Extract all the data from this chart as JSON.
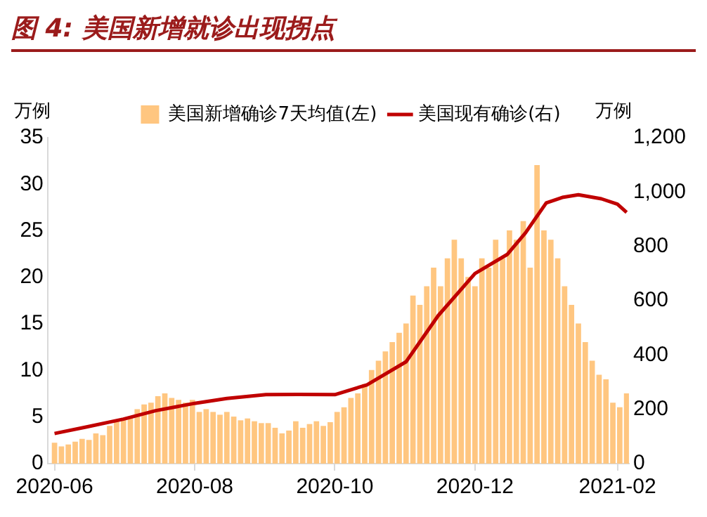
{
  "chart_data": {
    "type": "bar",
    "title": "图 4: 美国新增就诊出现拐点",
    "ylabel": "万例",
    "y2label": "万例",
    "legend": "top",
    "x": [
      "2020-06-01",
      "2020-06-04",
      "2020-06-07",
      "2020-06-10",
      "2020-06-13",
      "2020-06-16",
      "2020-06-19",
      "2020-06-22",
      "2020-06-25",
      "2020-06-28",
      "2020-07-01",
      "2020-07-04",
      "2020-07-07",
      "2020-07-10",
      "2020-07-13",
      "2020-07-16",
      "2020-07-19",
      "2020-07-22",
      "2020-07-25",
      "2020-07-28",
      "2020-07-31",
      "2020-08-03",
      "2020-08-06",
      "2020-08-09",
      "2020-08-12",
      "2020-08-15",
      "2020-08-18",
      "2020-08-21",
      "2020-08-24",
      "2020-08-27",
      "2020-08-30",
      "2020-09-02",
      "2020-09-05",
      "2020-09-08",
      "2020-09-11",
      "2020-09-14",
      "2020-09-17",
      "2020-09-20",
      "2020-09-23",
      "2020-09-26",
      "2020-09-29",
      "2020-10-02",
      "2020-10-05",
      "2020-10-08",
      "2020-10-11",
      "2020-10-14",
      "2020-10-17",
      "2020-10-20",
      "2020-10-23",
      "2020-10-26",
      "2020-10-29",
      "2020-11-01",
      "2020-11-04",
      "2020-11-07",
      "2020-11-10",
      "2020-11-13",
      "2020-11-16",
      "2020-11-19",
      "2020-11-22",
      "2020-11-25",
      "2020-11-28",
      "2020-12-01",
      "2020-12-04",
      "2020-12-07",
      "2020-12-10",
      "2020-12-13",
      "2020-12-16",
      "2020-12-19",
      "2020-12-22",
      "2020-12-25",
      "2020-12-28",
      "2020-12-31",
      "2021-01-03",
      "2021-01-06",
      "2021-01-09",
      "2021-01-12",
      "2021-01-15",
      "2021-01-18",
      "2021-01-21",
      "2021-01-24",
      "2021-01-27",
      "2021-01-30",
      "2021-02-02",
      "2021-02-05"
    ],
    "series": [
      {
        "name": "美国新增确诊7天均值(左)",
        "color": "#ffc680",
        "values": [
          2.2,
          1.8,
          2.0,
          2.3,
          2.6,
          2.5,
          3.2,
          3.0,
          4.0,
          4.5,
          4.8,
          5.0,
          5.8,
          6.3,
          6.5,
          7.2,
          7.5,
          7.0,
          6.8,
          6.5,
          6.8,
          5.5,
          5.8,
          5.5,
          5.2,
          5.5,
          5.0,
          4.6,
          4.8,
          4.5,
          4.3,
          4.3,
          3.8,
          3.2,
          3.5,
          4.5,
          3.8,
          4.2,
          4.5,
          4.0,
          4.4,
          5.5,
          6.0,
          7.0,
          7.5,
          8.5,
          10.0,
          11.0,
          12.0,
          13.0,
          14.0,
          15.0,
          18.0,
          17.0,
          19.0,
          21.0,
          19.0,
          22.0,
          24.0,
          22.0,
          20.0,
          19.0,
          22.0,
          21.0,
          24.0,
          22.0,
          25.0,
          24.0,
          26.0,
          21.0,
          32.0,
          25.0,
          24.0,
          22.0,
          19.0,
          17.0,
          15.0,
          13.0,
          11.0,
          9.5,
          9.0,
          6.5,
          6.0,
          7.5
        ]
      },
      {
        "name": "美国现有确诊(右)",
        "type": "line",
        "axis": "y2",
        "color": "#c00000",
        "x": [
          "2020-06-01",
          "2020-06-15",
          "2020-07-01",
          "2020-07-15",
          "2020-08-01",
          "2020-08-15",
          "2020-09-01",
          "2020-09-15",
          "2020-10-01",
          "2020-10-15",
          "2020-11-01",
          "2020-11-15",
          "2020-12-01",
          "2020-12-15",
          "2020-12-23",
          "2021-01-01",
          "2021-01-08",
          "2021-01-15",
          "2021-01-25",
          "2021-02-01",
          "2021-02-05"
        ],
        "values": [
          111,
          135,
          164,
          195,
          222,
          240,
          254,
          255,
          254,
          290,
          375,
          545,
          700,
          770,
          850,
          960,
          980,
          990,
          975,
          955,
          925
        ]
      }
    ],
    "xlim": [
      "2020-05-29",
      "2021-02-06"
    ],
    "xticks": [
      {
        "value": "2020-06-01",
        "label": "2020-06"
      },
      {
        "value": "2020-08-01",
        "label": "2020-08"
      },
      {
        "value": "2020-10-01",
        "label": "2020-10"
      },
      {
        "value": "2020-12-01",
        "label": "2020-12"
      },
      {
        "value": "2021-02-01",
        "label": "2021-02"
      }
    ],
    "ylim": [
      0,
      35
    ],
    "yticks": [
      0,
      5,
      10,
      15,
      20,
      25,
      30,
      35
    ],
    "y2lim": [
      0,
      1200
    ],
    "y2ticks": [
      0,
      200,
      400,
      600,
      800,
      {
        "value": 1000,
        "label": "1,000"
      },
      {
        "value": 1200,
        "label": "1,200"
      }
    ]
  }
}
